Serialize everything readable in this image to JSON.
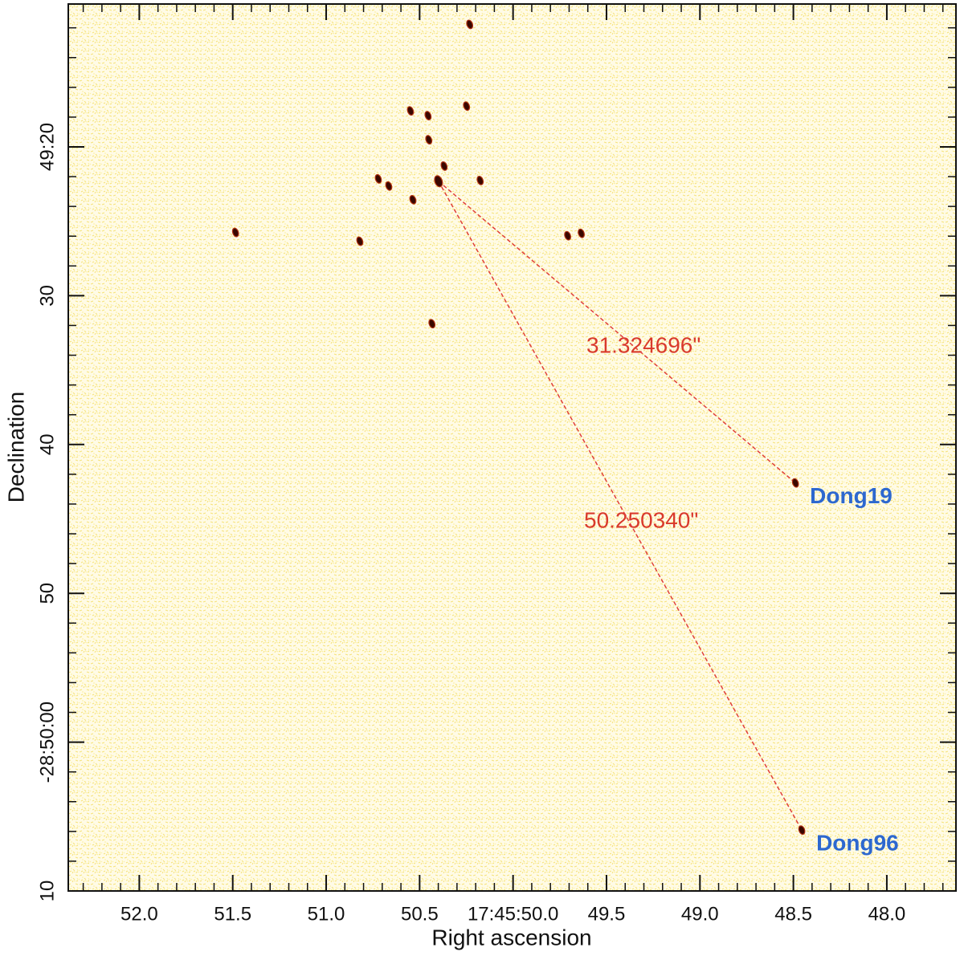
{
  "chart_data": {
    "type": "scatter",
    "xlabel": "Right ascension",
    "ylabel": "Declination",
    "xlim": [
      52.38,
      47.63
    ],
    "ylim": [
      10.4,
      70
    ],
    "xticks": [
      {
        "value": 52.0,
        "label": "52.0"
      },
      51.5,
      {
        "value": 51.0,
        "label": "51.0"
      },
      50.5,
      {
        "value": 50.0,
        "label": "17:45:50.0"
      },
      49.5,
      {
        "value": 49.0,
        "label": "49.0"
      },
      48.5,
      {
        "value": 48.0,
        "label": "48.0"
      }
    ],
    "xminorticks": [
      52.3,
      52.2,
      52.1,
      51.9,
      51.8,
      51.7,
      51.6,
      51.4,
      51.3,
      51.2,
      51.1,
      50.9,
      50.8,
      50.7,
      50.6,
      50.4,
      50.3,
      50.2,
      50.1,
      49.9,
      49.8,
      49.7,
      49.6,
      49.4,
      49.3,
      49.2,
      49.1,
      48.9,
      48.8,
      48.7,
      48.6,
      48.4,
      48.3,
      48.2,
      48.1,
      47.9,
      47.8,
      47.7
    ],
    "yticks": [
      {
        "value": 20,
        "label": "49:20"
      },
      30,
      40,
      50,
      {
        "value": 60,
        "label": "-28:50:00"
      },
      {
        "value": 70,
        "label": "10"
      }
    ],
    "yminorticks": [
      12,
      14,
      16,
      18,
      22,
      24,
      26,
      28,
      32,
      34,
      36,
      38,
      42,
      44,
      46,
      48,
      52,
      54,
      56,
      58,
      62,
      64,
      66,
      68
    ],
    "x": [
      50.232,
      50.549,
      50.455,
      50.249,
      50.451,
      50.369,
      50.399,
      50.176,
      50.536,
      50.665,
      50.721,
      51.485,
      50.82,
      49.708,
      49.635,
      50.434,
      48.489,
      48.455
    ],
    "y": [
      11.77,
      17.58,
      17.9,
      17.26,
      19.52,
      21.29,
      22.31,
      22.26,
      23.55,
      22.63,
      22.15,
      25.75,
      26.34,
      25.97,
      25.81,
      31.88,
      42.58,
      65.91
    ],
    "point_labels": [
      null,
      null,
      null,
      null,
      null,
      null,
      null,
      null,
      null,
      null,
      null,
      null,
      null,
      null,
      null,
      null,
      "Dong19",
      "Dong96"
    ],
    "measurements": [
      "31.324696\"",
      "50.250340\""
    ],
    "color": "#3a0800",
    "line_color": "#e0403a"
  }
}
